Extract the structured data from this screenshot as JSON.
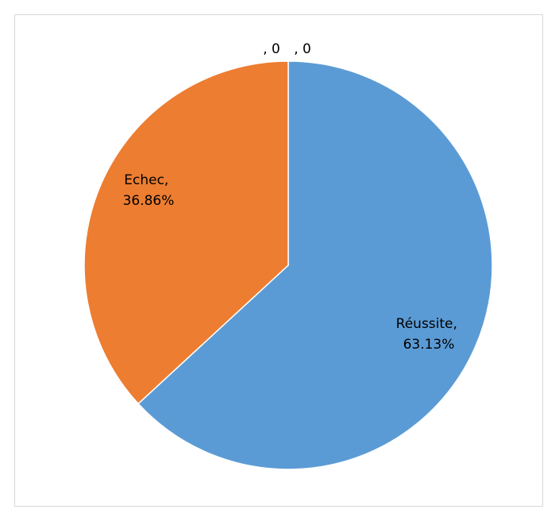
{
  "chart_data": {
    "type": "pie",
    "title": "",
    "slices": [
      {
        "label": "Réussite",
        "value": 63.13,
        "text": "63.13%",
        "color": "#5B9BD5"
      },
      {
        "label": "Echec",
        "value": 36.86,
        "text": "36.86%",
        "color": "#ED7D31"
      },
      {
        "label": "",
        "value": 0,
        "text": "0",
        "color": "#A5A5A5"
      },
      {
        "label": "",
        "value": 0,
        "text": "0",
        "color": "#FFC000"
      }
    ],
    "labels_display": [
      {
        "line1": "Réussite,",
        "line2": "63.13%"
      },
      {
        "line1": "Echec,",
        "line2": "36.86%"
      },
      {
        "line1": ", 0",
        "line2": ""
      },
      {
        "line1": ", 0",
        "line2": ""
      }
    ],
    "legend": "none"
  }
}
